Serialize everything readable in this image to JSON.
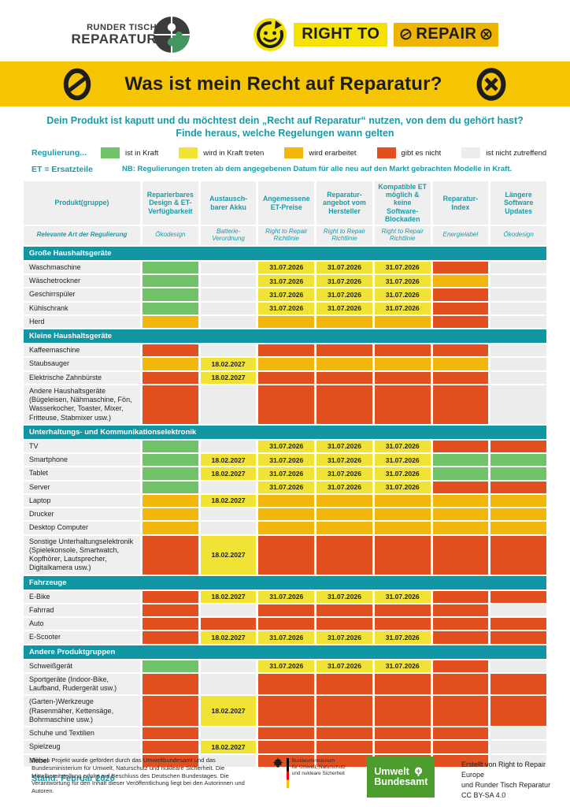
{
  "header": {
    "rtr_logo": {
      "line1": "RUNDER TISCH",
      "line2": "REPARATUR"
    },
    "r2r_logo": {
      "right_to": "RIGHT TO",
      "repair": "REPAIR"
    }
  },
  "banner": {
    "title": "Was ist mein Recht auf Reparatur?"
  },
  "intro": {
    "line1": "Dein Produkt ist kaputt und du möchtest dein „Recht auf Reparatur“ nutzen, von dem du gehört hast?",
    "line2": "Finde heraus, welche Regelungen wann gelten"
  },
  "legend": {
    "label": "Regulierung...",
    "items": [
      {
        "status": "green",
        "label": "ist in Kraft"
      },
      {
        "status": "yellow",
        "label": "wird in Kraft treten"
      },
      {
        "status": "amber",
        "label": "wird erarbeitet"
      },
      {
        "status": "red",
        "label": "gibt es nicht"
      },
      {
        "status": "gray",
        "label": "ist nicht zutreffend"
      }
    ],
    "et_note": "ET = Ersatzteile",
    "nb_note": "NB: Regulierungen treten ab dem angegebenen Datum für alle neu auf den Markt gebrachten Modelle in Kraft."
  },
  "colors": {
    "green": "#71c36a",
    "yellow": "#f1e335",
    "amber": "#f3b60a",
    "red": "#e25020",
    "gray": "#ededed",
    "teal": "#1197a3",
    "banner_yellow": "#f5c402"
  },
  "table": {
    "product_header": {
      "label": "Produkt(gruppe)",
      "sub": "Relevante Art der Regulierung"
    },
    "columns": [
      {
        "label": "Reparierbares Design & ET-Verfügbarkeit",
        "sub": "Ökodesign"
      },
      {
        "label": "Austausch-barer Akku",
        "sub": "Batterie-Verordnung"
      },
      {
        "label": "Angemessene ET-Preise",
        "sub": "Right to Repair Richtlinie"
      },
      {
        "label": "Reparatur-angebot vom Hersteller",
        "sub": "Right to Repair Richtlinie"
      },
      {
        "label": "Kompatible ET möglich & keine Software-Blockaden",
        "sub": "Right to Repair Richtlinie"
      },
      {
        "label": "Reparatur-Index",
        "sub": "Energielabel"
      },
      {
        "label": "Längere Software Updates",
        "sub": "Ökodesign"
      }
    ],
    "sections": [
      {
        "title": "Große Haushaltsgeräte",
        "rows": [
          {
            "label": "Waschmaschine",
            "cells": [
              "green",
              "gray",
              "yellow:31.07.2026",
              "yellow:31.07.2026",
              "yellow:31.07.2026",
              "red",
              "gray"
            ]
          },
          {
            "label": "Wäschetrockner",
            "cells": [
              "green",
              "gray",
              "yellow:31.07.2026",
              "yellow:31.07.2026",
              "yellow:31.07.2026",
              "amber",
              "gray"
            ]
          },
          {
            "label": "Geschirrspüler",
            "cells": [
              "green",
              "gray",
              "yellow:31.07.2026",
              "yellow:31.07.2026",
              "yellow:31.07.2026",
              "red",
              "gray"
            ]
          },
          {
            "label": "Kühlschrank",
            "cells": [
              "green",
              "gray",
              "yellow:31.07.2026",
              "yellow:31.07.2026",
              "yellow:31.07.2026",
              "red",
              "gray"
            ]
          },
          {
            "label": "Herd",
            "cells": [
              "amber",
              "gray",
              "amber",
              "amber",
              "amber",
              "red",
              "gray"
            ]
          }
        ]
      },
      {
        "title": "Kleine Haushaltsgeräte",
        "rows": [
          {
            "label": "Kaffeemaschine",
            "cells": [
              "red",
              "gray",
              "red",
              "red",
              "red",
              "red",
              "gray"
            ]
          },
          {
            "label": "Staubsauger",
            "cells": [
              "amber",
              "yellow:18.02.2027",
              "amber",
              "amber",
              "amber",
              "amber",
              "gray"
            ]
          },
          {
            "label": "Elektrische Zahnbürste",
            "cells": [
              "red",
              "yellow:18.02.2027",
              "red",
              "red",
              "red",
              "red",
              "gray"
            ]
          },
          {
            "label": "Andere Haushaltsgeräte (Bügeleisen, Nähmaschine, Fön, Wasserkocher, Toaster, Mixer, Fritteuse, Stabmixer usw.)",
            "tall": true,
            "cells": [
              "red",
              "gray",
              "red",
              "red",
              "red",
              "red",
              "gray"
            ]
          }
        ]
      },
      {
        "title": "Unterhaltungs- und Kommunikationselektronik",
        "rows": [
          {
            "label": "TV",
            "cells": [
              "green",
              "gray",
              "yellow:31.07.2026",
              "yellow:31.07.2026",
              "yellow:31.07.2026",
              "red",
              "red"
            ]
          },
          {
            "label": "Smartphone",
            "cells": [
              "green",
              "yellow:18.02.2027",
              "yellow:31.07.2026",
              "yellow:31.07.2026",
              "yellow:31.07.2026",
              "green",
              "green"
            ]
          },
          {
            "label": "Tablet",
            "cells": [
              "green",
              "yellow:18.02.2027",
              "yellow:31.07.2026",
              "yellow:31.07.2026",
              "yellow:31.07.2026",
              "green",
              "green"
            ]
          },
          {
            "label": "Server",
            "cells": [
              "green",
              "gray",
              "yellow:31.07.2026",
              "yellow:31.07.2026",
              "yellow:31.07.2026",
              "red",
              "red"
            ]
          },
          {
            "label": "Laptop",
            "cells": [
              "amber",
              "yellow:18.02.2027",
              "amber",
              "amber",
              "amber",
              "amber",
              "amber"
            ]
          },
          {
            "label": "Drucker",
            "cells": [
              "amber",
              "gray",
              "amber",
              "amber",
              "amber",
              "amber",
              "amber"
            ]
          },
          {
            "label": "Desktop Computer",
            "cells": [
              "amber",
              "gray",
              "amber",
              "amber",
              "amber",
              "amber",
              "amber"
            ]
          },
          {
            "label": "Sonstige Unterhaltungselektronik (Spielekonsole, Smartwatch, Kopfhörer, Lautsprecher, Digitalkamera usw.)",
            "tall": true,
            "cells": [
              "red",
              "yellow:18.02.2027",
              "red",
              "red",
              "red",
              "red",
              "red"
            ]
          }
        ]
      },
      {
        "title": "Fahrzeuge",
        "rows": [
          {
            "label": "E-Bike",
            "cells": [
              "red",
              "yellow:18.02.2027",
              "yellow:31.07.2026",
              "yellow:31.07.2026",
              "yellow:31.07.2026",
              "red",
              "red"
            ]
          },
          {
            "label": "Fahrrad",
            "cells": [
              "red",
              "gray",
              "red",
              "red",
              "red",
              "red",
              "gray"
            ]
          },
          {
            "label": "Auto",
            "cells": [
              "red",
              "red",
              "red",
              "red",
              "red",
              "red",
              "red"
            ]
          },
          {
            "label": "E-Scooter",
            "cells": [
              "red",
              "yellow:18.02.2027",
              "yellow:31.07.2026",
              "yellow:31.07.2026",
              "yellow:31.07.2026",
              "red",
              "red"
            ]
          }
        ]
      },
      {
        "title": "Andere Produktgruppen",
        "rows": [
          {
            "label": "Schweißgerät",
            "cells": [
              "green",
              "gray",
              "yellow:31.07.2026",
              "yellow:31.07.2026",
              "yellow:31.07.2026",
              "red",
              "gray"
            ]
          },
          {
            "label": "Sportgeräte (Indoor-Bike, Laufband, Rudergerät usw.)",
            "cells": [
              "red",
              "gray",
              "red",
              "red",
              "red",
              "red",
              "red"
            ]
          },
          {
            "label": "(Garten-)Werkzeuge (Rasenmäher, Kettensäge, Bohrmaschine usw.)",
            "cells": [
              "red",
              "yellow:18.02.2027",
              "red",
              "red",
              "red",
              "red",
              "red"
            ]
          },
          {
            "label": "Schuhe und Textilien",
            "cells": [
              "red",
              "gray",
              "red",
              "red",
              "red",
              "red",
              "gray"
            ]
          },
          {
            "label": "Spielzeug",
            "cells": [
              "red",
              "yellow:18.02.2027",
              "red",
              "red",
              "red",
              "red",
              "gray"
            ]
          },
          {
            "label": "Möbel",
            "cells": [
              "red",
              "gray",
              "red",
              "red",
              "red",
              "red",
              "gray"
            ]
          }
        ]
      }
    ]
  },
  "footer": {
    "stand": "Stand: Februar 2026",
    "funding_text": "Dieses Projekt wurde gefördert durch das Umweltbundesamt und das Bundesministerium für Umwelt, Naturschutz und nukleare Sicherheit. Die Mittelbereitstellung erfolgt auf Beschluss des Deutschen Bundestages. Die Verantwortung für den Inhalt dieser Veröffentlichung liegt bei den Autorinnen und Autoren.",
    "ministry_logo": {
      "line1": "Bundesministerium",
      "line2": "für Umwelt, Naturschutz",
      "line3": "und nukleare Sicherheit"
    },
    "uba_logo": {
      "line1": "Umwelt",
      "line2": "Bundesamt"
    },
    "credit": {
      "line1": "Erstellt von Right to Repair Europe",
      "line2": "und Runder Tisch Reparatur",
      "line3": "CC BY-SA 4.0"
    }
  }
}
